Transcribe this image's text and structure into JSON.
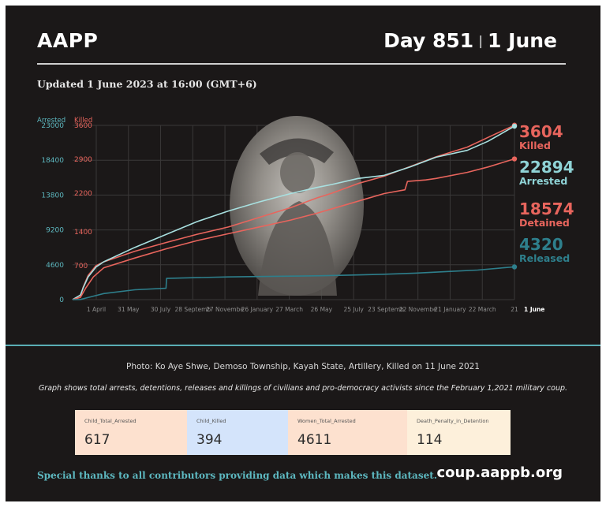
{
  "header": {
    "brand": "AAPP",
    "day_label": "Day 851",
    "separator": "|",
    "date": "1 June",
    "updated": "Updated 1 June 2023 at 16:00 (GMT+6)"
  },
  "chart_data": {
    "type": "line",
    "title": "",
    "axes": {
      "left_outer": {
        "label": "Arrested",
        "ticks": [
          0,
          4600,
          9200,
          13800,
          18400,
          23000
        ],
        "range": [
          0,
          23000
        ],
        "color": "#5db8c0"
      },
      "left_inner": {
        "label": "Killed",
        "ticks": [
          700,
          1400,
          2200,
          2900,
          3600
        ],
        "range": [
          0,
          3600
        ],
        "color": "#e8655d"
      }
    },
    "x_ticks": [
      "1 April",
      "31 May",
      "30 July",
      "28 Septemb",
      "27 Novembe",
      "26 January",
      "27 March",
      "26 May",
      "25 July",
      "23 Septemb",
      "22 Novembe",
      "21 January",
      "22 March",
      "21 ",
      "1 June"
    ],
    "grid": true,
    "x_range": [
      0,
      851
    ],
    "series": [
      {
        "name": "Killed",
        "value": 3604,
        "color": "#e8655d",
        "axis": "left_inner",
        "x": [
          0,
          15,
          20,
          30,
          45,
          60,
          120,
          180,
          240,
          300,
          360,
          420,
          470,
          500,
          550,
          600,
          650,
          700,
          760,
          800,
          851
        ],
        "y": [
          0,
          50,
          250,
          500,
          700,
          780,
          1000,
          1180,
          1350,
          1500,
          1700,
          1900,
          2100,
          2200,
          2400,
          2550,
          2750,
          2950,
          3150,
          3350,
          3604
        ]
      },
      {
        "name": "Arrested",
        "value": 22894,
        "color": "#a8e0e0",
        "axis": "left_outer",
        "x": [
          0,
          15,
          20,
          30,
          45,
          60,
          120,
          180,
          240,
          300,
          360,
          420,
          470,
          500,
          550,
          600,
          650,
          700,
          760,
          800,
          851
        ],
        "y": [
          0,
          600,
          1500,
          3000,
          4300,
          5000,
          6900,
          8600,
          10300,
          11700,
          12900,
          14000,
          14800,
          15200,
          16000,
          16400,
          17500,
          18800,
          19700,
          20900,
          22894
        ]
      },
      {
        "name": "Detained",
        "value": 18574,
        "color": "#e8655d",
        "axis": "left_outer",
        "x": [
          0,
          15,
          25,
          40,
          60,
          120,
          180,
          240,
          300,
          360,
          420,
          470,
          510,
          560,
          600,
          640,
          645,
          680,
          700,
          760,
          800,
          851
        ],
        "y": [
          0,
          300,
          1500,
          3000,
          4200,
          5500,
          6700,
          7800,
          8700,
          9600,
          10500,
          11400,
          12200,
          13200,
          14000,
          14500,
          15600,
          15800,
          16000,
          16800,
          17500,
          18574
        ]
      },
      {
        "name": "Released",
        "value": 4320,
        "color": "#2e7f8c",
        "axis": "left_outer",
        "x": [
          0,
          15,
          25,
          60,
          120,
          180,
          181,
          240,
          300,
          360,
          420,
          480,
          540,
          600,
          660,
          720,
          780,
          830,
          851
        ],
        "y": [
          0,
          20,
          200,
          800,
          1300,
          1500,
          2800,
          2900,
          3000,
          3050,
          3100,
          3150,
          3250,
          3350,
          3500,
          3700,
          3900,
          4200,
          4320
        ]
      }
    ],
    "legend": [
      {
        "value": "3604",
        "label": "Killed",
        "color": "#e8655d"
      },
      {
        "value": "22894",
        "label": "Arrested",
        "color": "#8fd3d6"
      },
      {
        "value": "18574",
        "label": "Detained",
        "color": "#e8655d"
      },
      {
        "value": "4320",
        "label": "Released",
        "color": "#2e7f8c"
      }
    ]
  },
  "footer": {
    "credit": "Photo: Ko Aye Shwe, Demoso Township, Kayah State, Artillery, Killed on 11 June 2021",
    "note": "Graph shows total arrests, detentions, releases and killings of civilians and pro-democracy activists since the February 1,2021 military coup.",
    "stats": [
      {
        "label": "Child_Total_Arrested",
        "value": "617",
        "color": "#fde1cf"
      },
      {
        "label": "Child_Killed",
        "value": "394",
        "color": "#d4e4fb"
      },
      {
        "label": "Women_Total_Arrested",
        "value": "4611",
        "color": "#fde1cf"
      },
      {
        "label": "Death_Penalty_in_Detention",
        "value": "114",
        "color": "#fdf0db"
      }
    ],
    "thanks": "Special thanks to all contributors providing data which makes this dataset.",
    "site": "coup.aappb.org"
  }
}
